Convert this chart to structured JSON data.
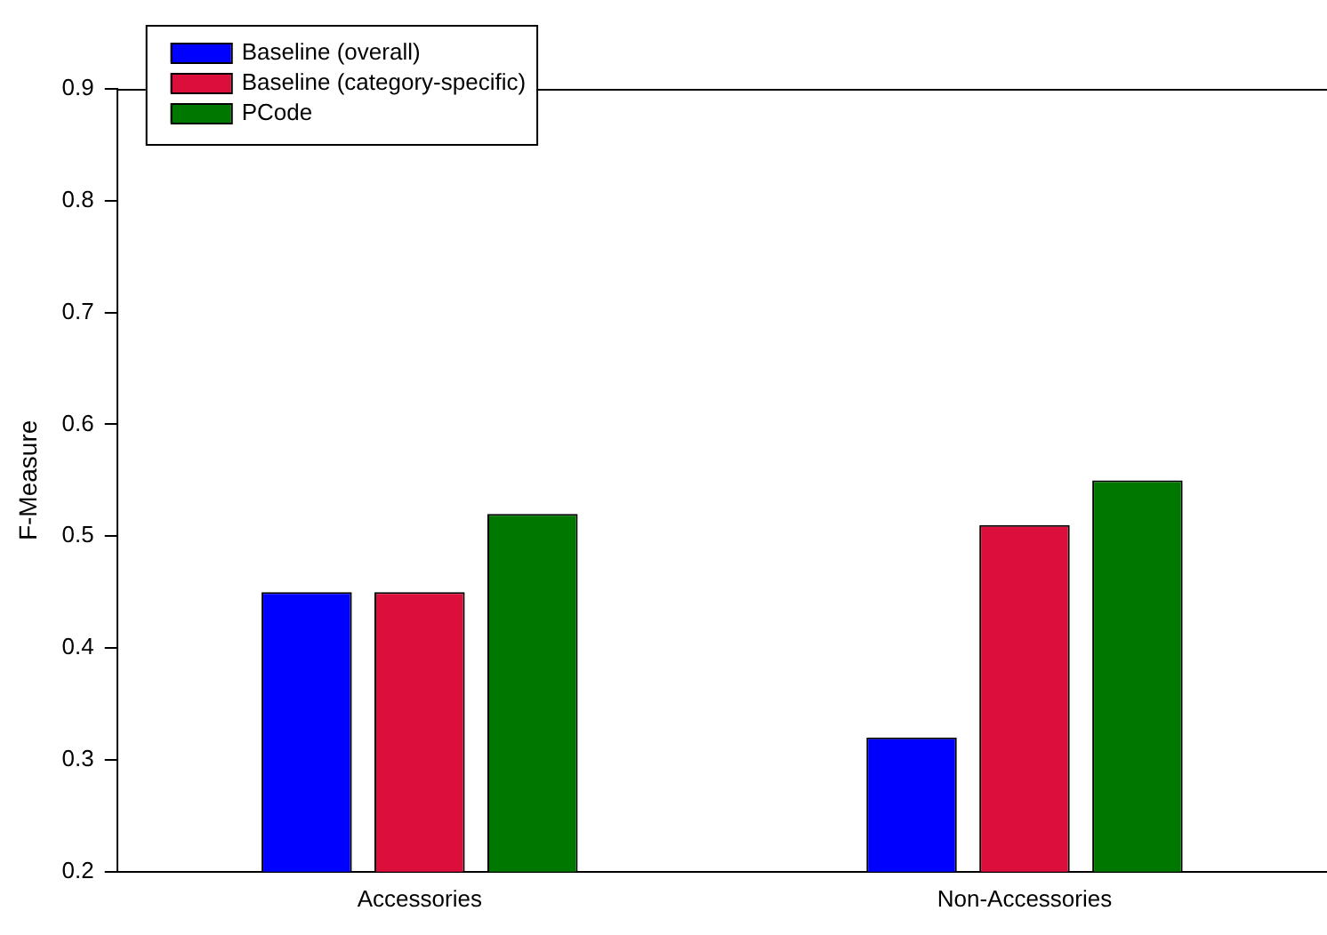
{
  "chart_data": {
    "type": "bar",
    "ylabel": "F-Measure",
    "categories": [
      "Accessories",
      "Non-Accessories"
    ],
    "series": [
      {
        "name": "Baseline (overall)",
        "color": "#0000ff",
        "values": [
          0.45,
          0.32
        ]
      },
      {
        "name": "Baseline (category-specific)",
        "color": "#dc0f3c",
        "values": [
          0.45,
          0.51
        ]
      },
      {
        "name": "PCode",
        "color": "#007800",
        "values": [
          0.52,
          0.55
        ]
      }
    ],
    "ylim": [
      0.2,
      0.9
    ],
    "yticks": [
      0.2,
      0.3,
      0.4,
      0.5,
      0.6,
      0.7,
      0.8,
      0.9
    ],
    "grid": false,
    "legend": "top left"
  }
}
